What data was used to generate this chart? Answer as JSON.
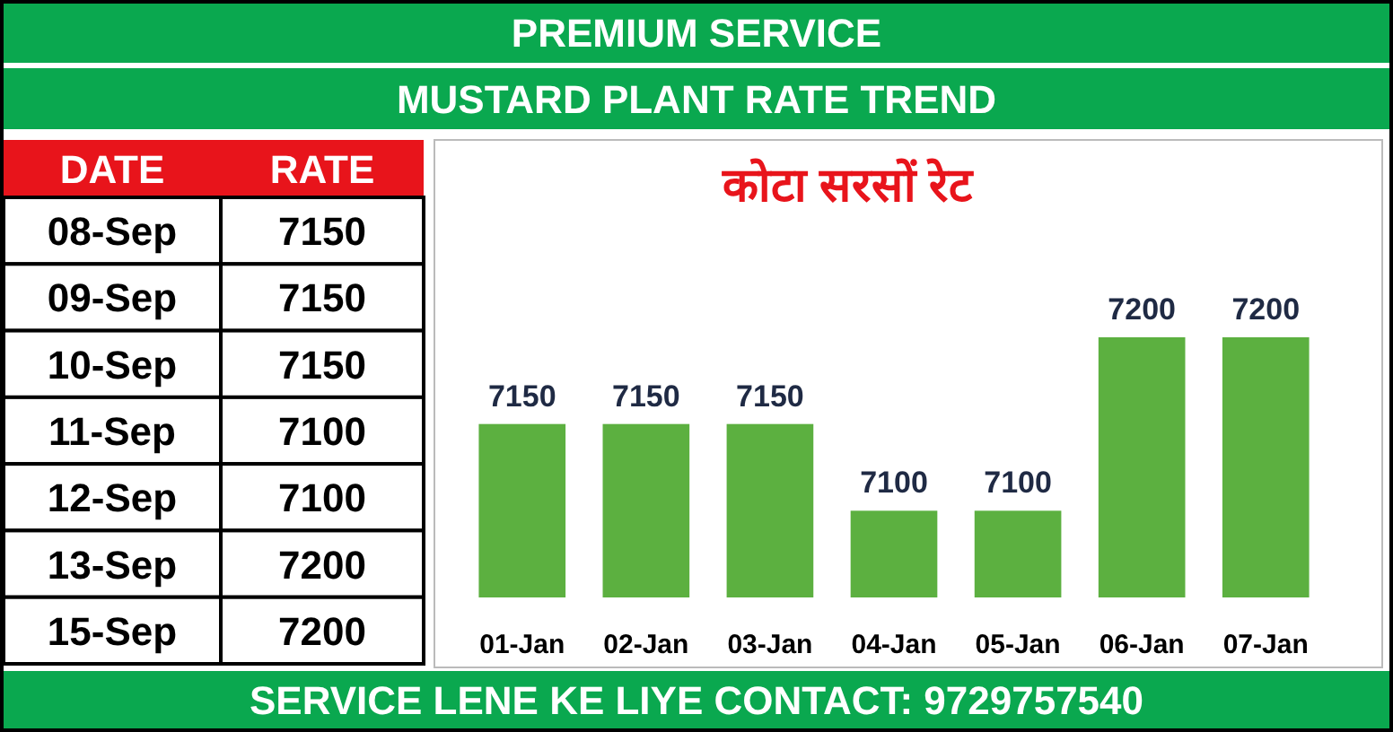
{
  "chart_data": [
    {
      "type": "other",
      "title": "PREMIUM SERVICE",
      "subtitle": "MUSTARD PLANT RATE TREND",
      "xlabel": "DATE",
      "ylabel": "RATE",
      "categories": [
        "08-Sep",
        "09-Sep",
        "10-Sep",
        "11-Sep",
        "12-Sep",
        "13-Sep",
        "15-Sep"
      ],
      "values": [
        7150,
        7150,
        7150,
        7100,
        7100,
        7200,
        7200
      ],
      "data_labels": true,
      "annotations": [
        "SERVICE LENE KE LIYE CONTACT: 9729757540"
      ]
    },
    {
      "type": "bar",
      "title": "कोटा सरसों रेट",
      "categories": [
        "01-Jan",
        "02-Jan",
        "03-Jan",
        "04-Jan",
        "05-Jan",
        "06-Jan",
        "07-Jan"
      ],
      "values": [
        7150,
        7150,
        7150,
        7100,
        7100,
        7200,
        7200
      ],
      "color": "#5cb040",
      "ylim": [
        7050,
        7200
      ],
      "data_labels": true
    }
  ]
}
